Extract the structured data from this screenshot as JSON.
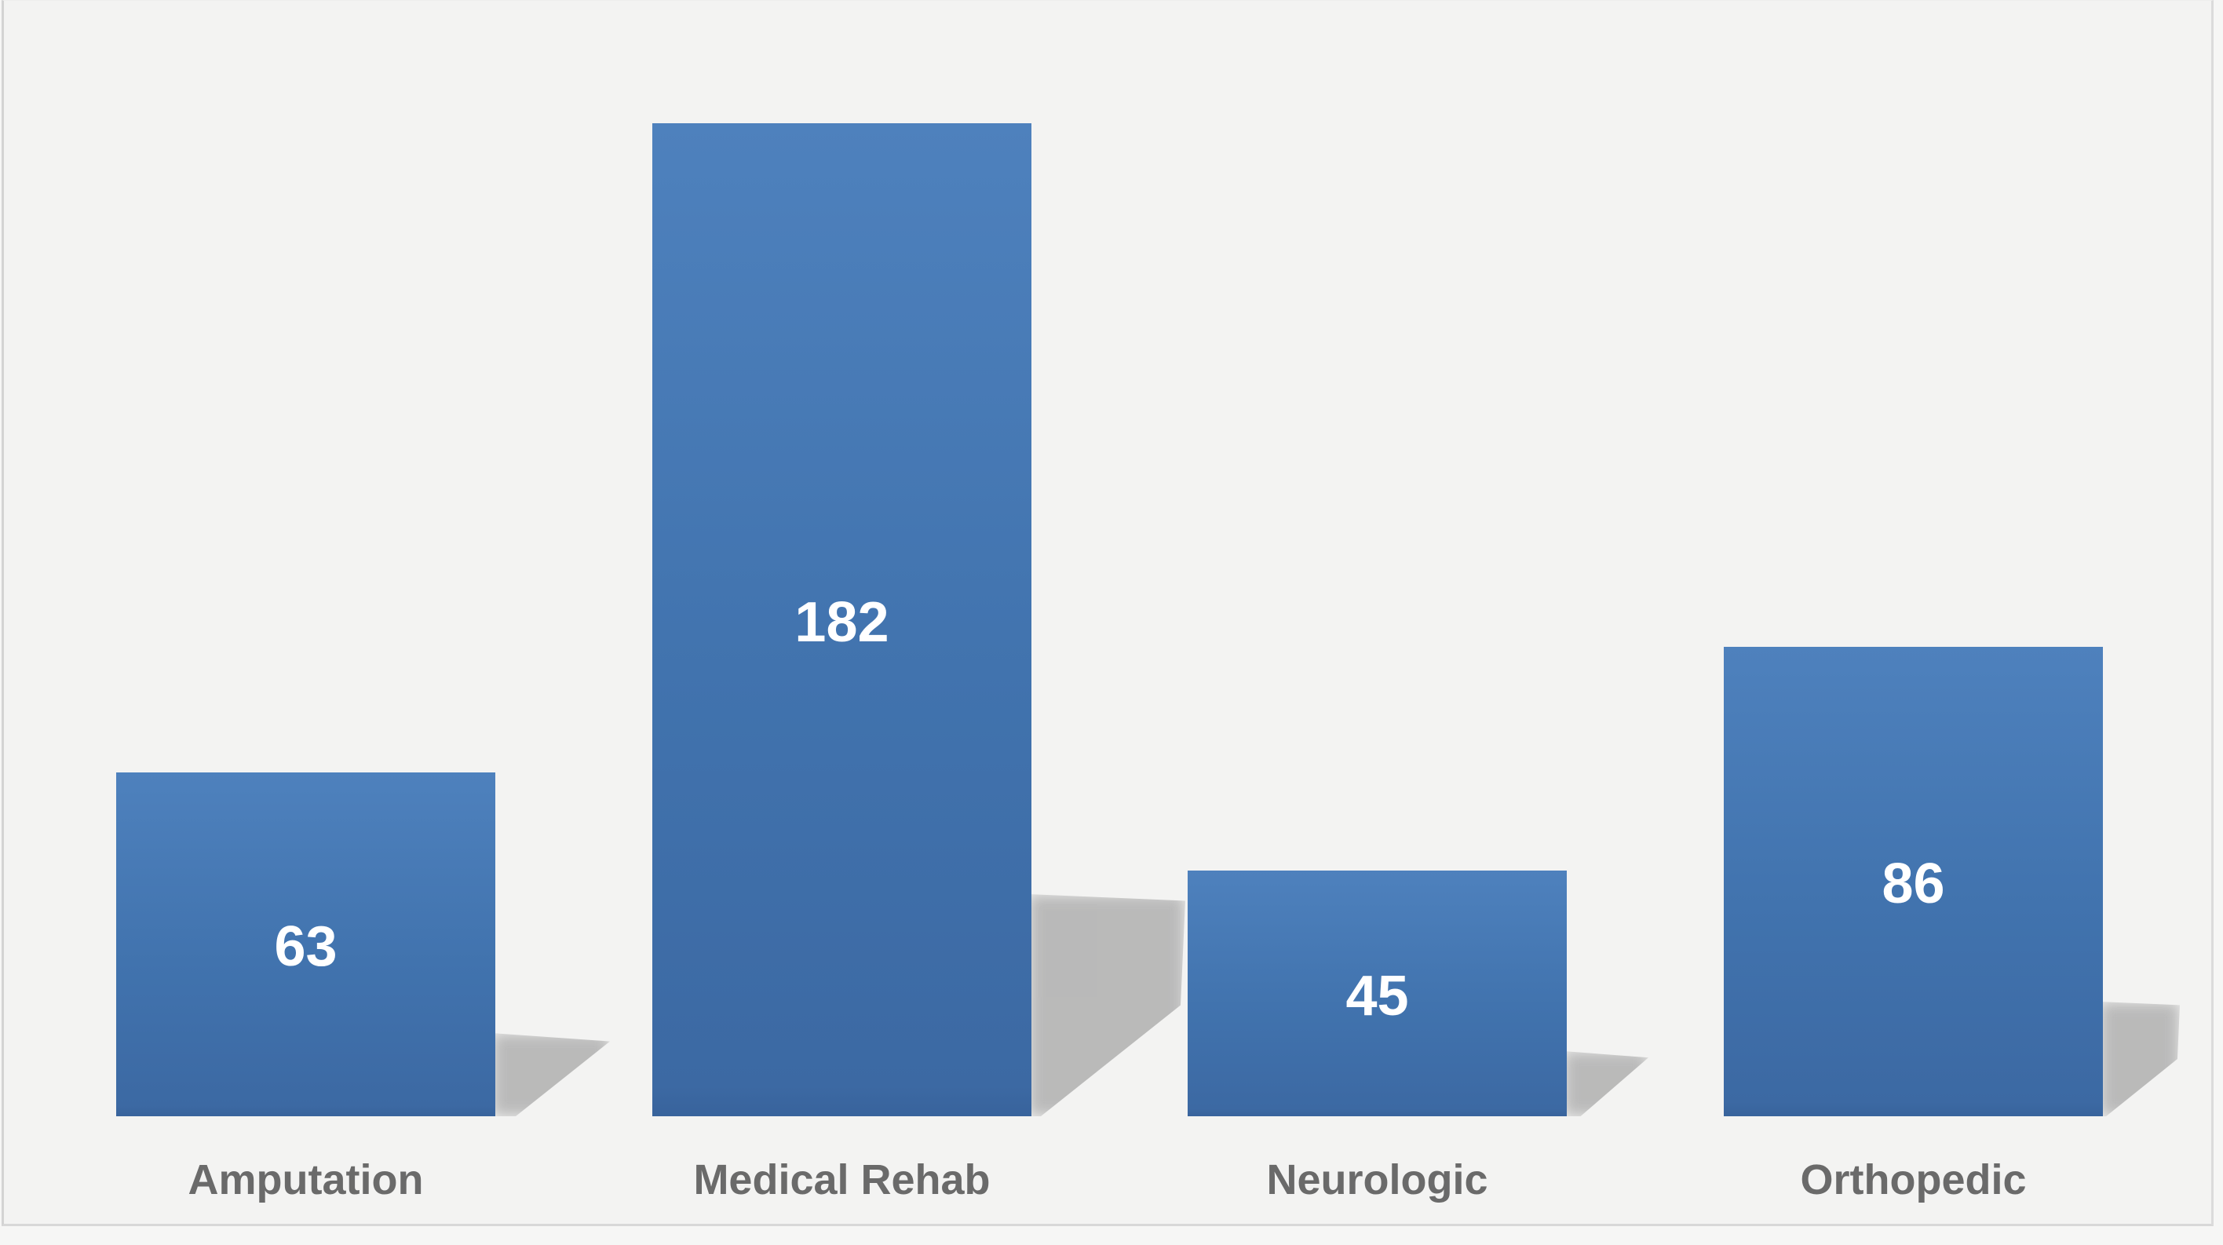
{
  "chart_data": {
    "type": "bar",
    "title": "",
    "categories": [
      "Amputation",
      "Medical Rehab",
      "Neurologic",
      "Orthopedic"
    ],
    "values": [
      63,
      182,
      45,
      86
    ],
    "data_labels": [
      "63",
      "182",
      "45",
      "86"
    ],
    "xlabel": "",
    "ylabel": "",
    "ylim": [
      0,
      205
    ],
    "grid": false,
    "legend": "none",
    "colors": {
      "bar_top": "#4e81bd",
      "bar_bottom": "#3c69a3",
      "value_label": "#ffffff",
      "category_label": "#6a6a6a",
      "plot_background": "#f3f3f2",
      "frame_border": "#d6d6d6",
      "shadow": "#b0b0b0"
    }
  }
}
